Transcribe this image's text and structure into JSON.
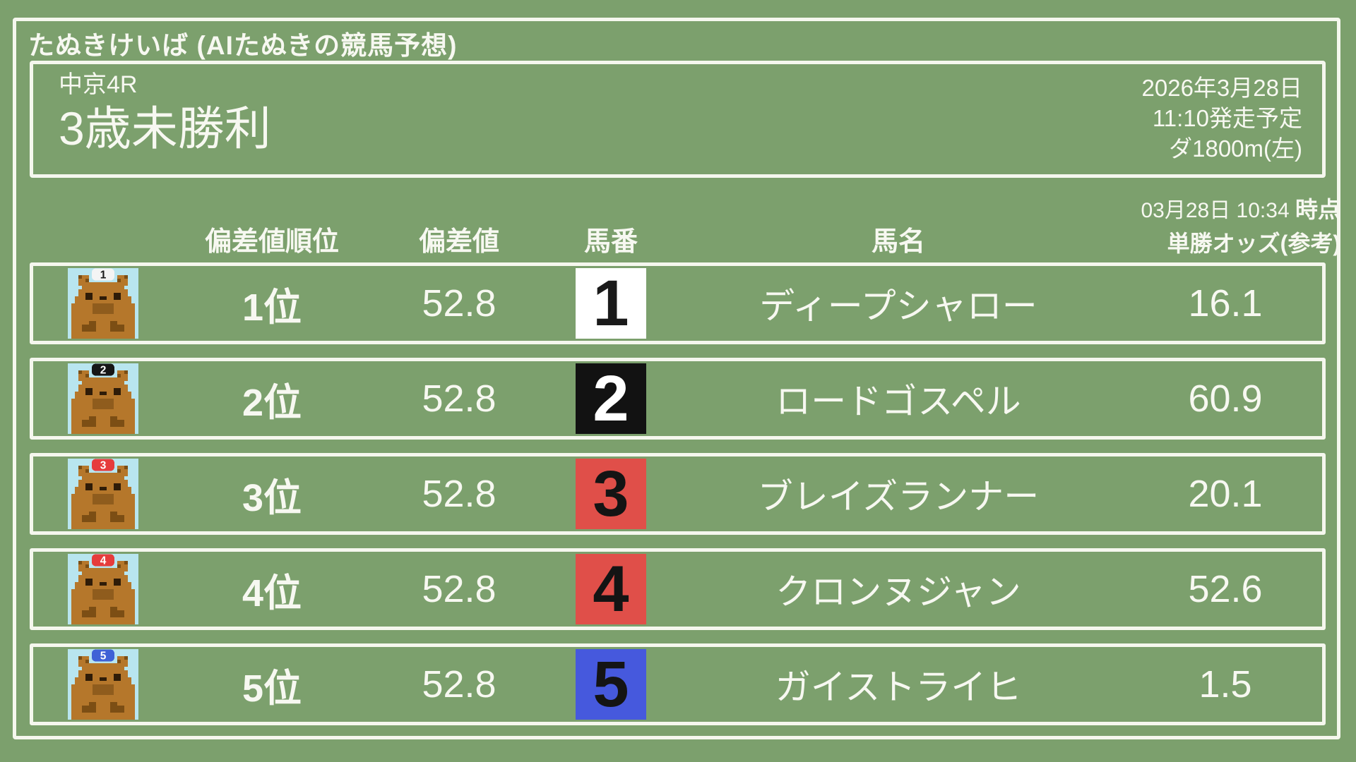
{
  "site": {
    "title": "たぬきけいば (AIたぬきの競馬予想)"
  },
  "race": {
    "course": "中京4R",
    "name": "3歳未勝利",
    "date": "2026年3月28日",
    "start_time": "11:10発走予定",
    "track": "ダ1800m(左)"
  },
  "table": {
    "headers": {
      "rank": "偏差値順位",
      "score": "偏差値",
      "number": "馬番",
      "name": "馬名",
      "odds_time": "03月28日 10:34",
      "odds_time_suffix": "時点",
      "odds_label": "単勝オッズ(参考)"
    },
    "rows": [
      {
        "rank": "1位",
        "score": "52.8",
        "number": "1",
        "name": "ディープシャロー",
        "odds": "16.1",
        "number_bg": "#ffffff",
        "number_color": "#1a1a1a",
        "cap_bg": "#f4f4f4",
        "cap_color": "#1a1a1a"
      },
      {
        "rank": "2位",
        "score": "52.8",
        "number": "2",
        "name": "ロードゴスペル",
        "odds": "60.9",
        "number_bg": "#121212",
        "number_color": "#ffffff",
        "cap_bg": "#161616",
        "cap_color": "#ffffff"
      },
      {
        "rank": "3位",
        "score": "52.8",
        "number": "3",
        "name": "ブレイズランナー",
        "odds": "20.1",
        "number_bg": "#e04f49",
        "number_color": "#141414",
        "cap_bg": "#e63c3c",
        "cap_color": "#ffffff"
      },
      {
        "rank": "4位",
        "score": "52.8",
        "number": "4",
        "name": "クロンヌジャン",
        "odds": "52.6",
        "number_bg": "#e04f49",
        "number_color": "#141414",
        "cap_bg": "#e63c3c",
        "cap_color": "#ffffff"
      },
      {
        "rank": "5位",
        "score": "52.8",
        "number": "5",
        "name": "ガイストライヒ",
        "odds": "1.5",
        "number_bg": "#4659dd",
        "number_color": "#141414",
        "cap_bg": "#3f62d6",
        "cap_color": "#ffffff"
      }
    ]
  },
  "colors": {
    "background": "#7ca06d",
    "chalk": "#f5f7ee",
    "text": "#f7f8f1",
    "icon_background": "#b8e5ef",
    "tanuki_body": "#b5772b",
    "tanuki_dark": "#7c4e14",
    "tanuki_mid": "#8f5c1d",
    "tanuki_eye": "#2f1c08",
    "number_red": "#e04f49",
    "number_blue": "#4659dd"
  }
}
